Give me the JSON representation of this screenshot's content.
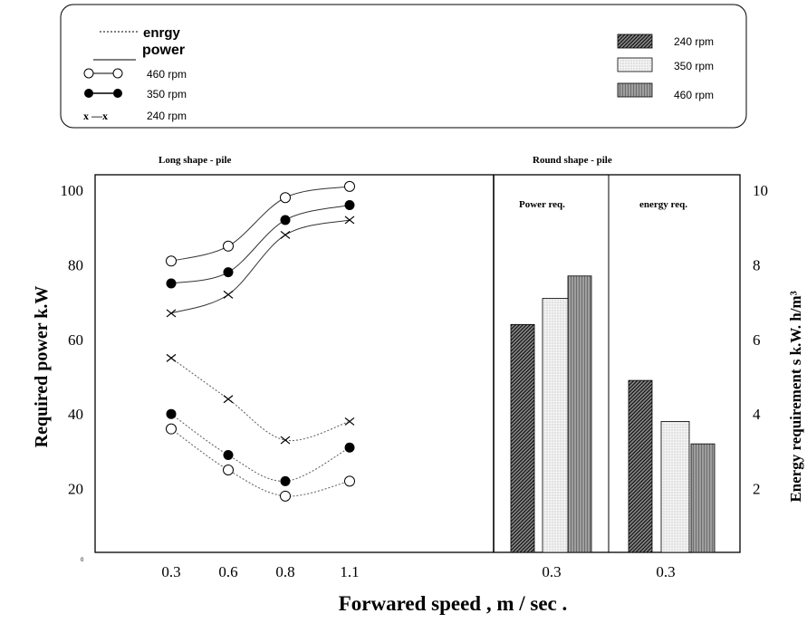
{
  "chart_data": {
    "type": "line",
    "xlabel": "Forwared speed , m / sec .",
    "ylabel_left": "Required  power k.W",
    "ylabel_right": "Energy requirement s k.W. h/m³",
    "panels": {
      "left_title": "Long shape - pile",
      "right_title": "Round shape - pile",
      "power_label": "Power req.",
      "energy_label": "energy req."
    },
    "legend": {
      "energy": "enrgy",
      "power": "power",
      "rpm460": "460 rpm",
      "rpm350": "350 rpm",
      "rpm240": "240 rpm",
      "x_marker": "x —x",
      "bar240": "240 rpm",
      "bar350": "350 rpm",
      "bar460": "460 rpm"
    },
    "x_ticks": [
      "0.3",
      "0.6",
      "0.8",
      "1.1"
    ],
    "y_left_ticks": [
      "20",
      "40",
      "60",
      "80",
      "100"
    ],
    "y_left_zero": "0",
    "y_right_ticks": [
      "2",
      "4",
      "6",
      "8",
      "10"
    ],
    "ylim_left": [
      0,
      100
    ],
    "ylim_right": [
      0,
      10
    ],
    "series": [
      {
        "name": "460 rpm",
        "kind": "power",
        "marker": "open",
        "x": [
          0.3,
          0.6,
          0.8,
          1.1
        ],
        "y": [
          81,
          85,
          98,
          101
        ]
      },
      {
        "name": "350 rpm",
        "kind": "power",
        "marker": "filled",
        "x": [
          0.3,
          0.6,
          0.8,
          1.1
        ],
        "y": [
          75,
          78,
          92,
          96
        ]
      },
      {
        "name": "240 rpm",
        "kind": "power",
        "marker": "x",
        "x": [
          0.3,
          0.6,
          0.8,
          1.1
        ],
        "y": [
          67,
          72,
          88,
          92
        ]
      },
      {
        "name": "240 rpm",
        "kind": "energy",
        "marker": "x",
        "x": [
          0.3,
          0.6,
          0.8,
          1.1
        ],
        "y": [
          55,
          44,
          33,
          38
        ]
      },
      {
        "name": "350 rpm",
        "kind": "energy",
        "marker": "filled",
        "x": [
          0.3,
          0.6,
          0.8,
          1.1
        ],
        "y": [
          40,
          29,
          22,
          31
        ]
      },
      {
        "name": "460 rpm",
        "kind": "energy",
        "marker": "open",
        "x": [
          0.3,
          0.6,
          0.8,
          1.1
        ],
        "y": [
          36,
          25,
          18,
          22
        ]
      }
    ],
    "bars": {
      "x_tick": "0.3",
      "power": [
        {
          "name": "240 rpm",
          "value": 64
        },
        {
          "name": "350 rpm",
          "value": 71
        },
        {
          "name": "460 rpm",
          "value": 77
        }
      ],
      "energy": [
        {
          "name": "240 rpm",
          "value": 4.9
        },
        {
          "name": "350 rpm",
          "value": 3.8
        },
        {
          "name": "460 rpm",
          "value": 3.2
        }
      ]
    }
  }
}
